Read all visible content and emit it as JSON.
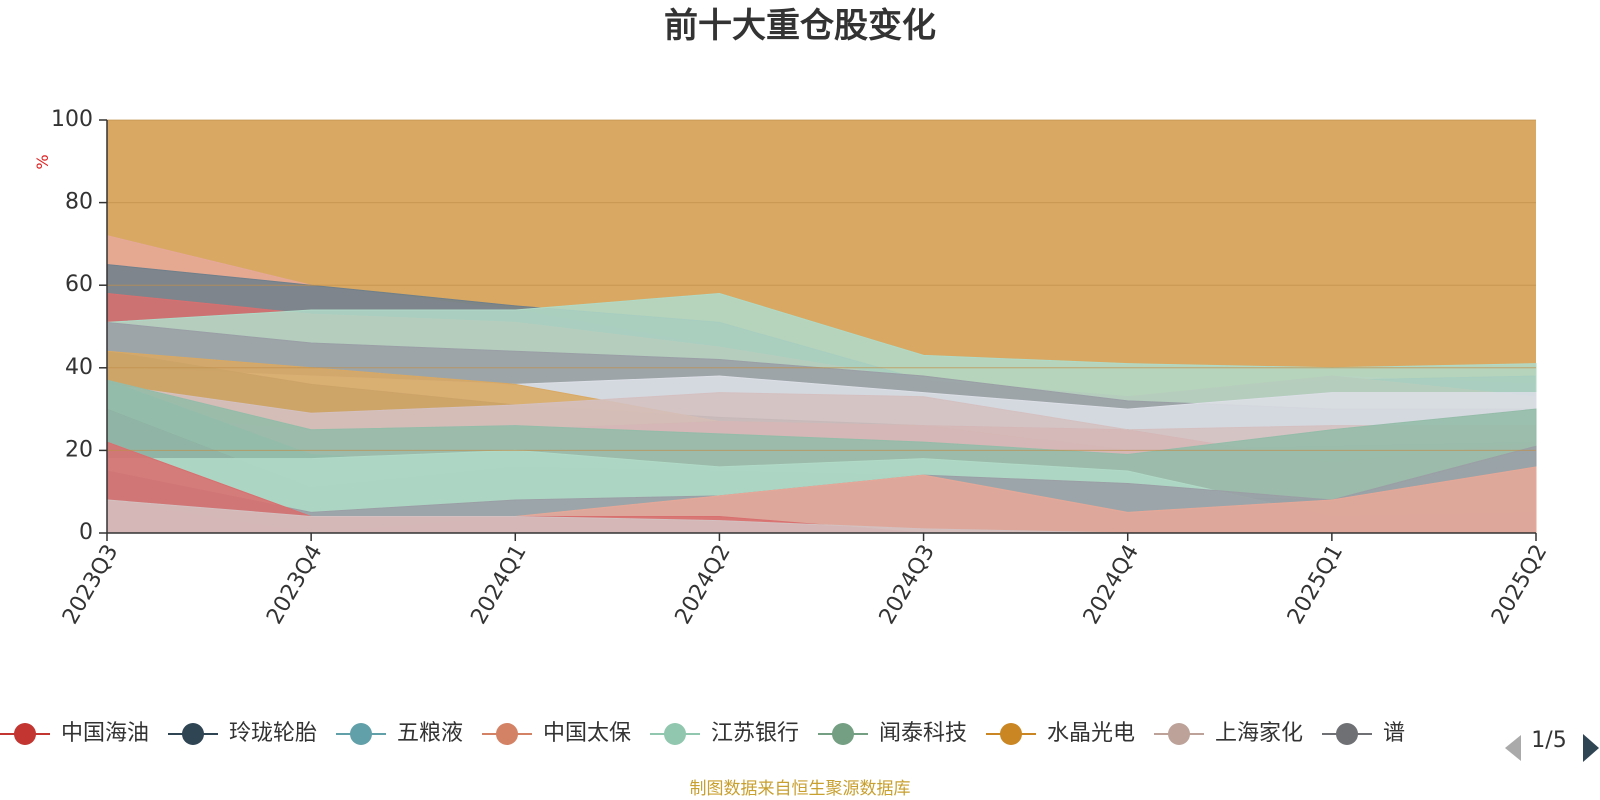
{
  "chart_data": {
    "type": "area",
    "title": "前十大重仓股变化",
    "ylabel": "%",
    "ylim": [
      0,
      100
    ],
    "yticks": [
      0,
      20,
      40,
      60,
      80,
      100
    ],
    "categories": [
      "2023Q3",
      "2023Q4",
      "2024Q1",
      "2024Q2",
      "2024Q3",
      "2024Q4",
      "2025Q1",
      "2025Q2"
    ],
    "background_area_color": "#d9a963",
    "areas": [
      {
        "color": "#e6a898",
        "values": [
          72,
          60,
          54,
          45,
          37,
          33,
          38,
          36
        ]
      },
      {
        "color": "#6f7f8b",
        "values": [
          65,
          60,
          55,
          51,
          37,
          33,
          37,
          38
        ]
      },
      {
        "color": "#d87070",
        "values": [
          58,
          53,
          51,
          45,
          37,
          33,
          38,
          33
        ]
      },
      {
        "color": "#b0dac7",
        "values": [
          51,
          54,
          54,
          58,
          43,
          41,
          40,
          41
        ]
      },
      {
        "color": "#9a9fa6",
        "values": [
          51,
          46,
          44,
          42,
          38,
          32,
          30,
          30
        ]
      },
      {
        "color": "#dcdfe6",
        "values": [
          40,
          38,
          36,
          38,
          34,
          30,
          34,
          34
        ]
      },
      {
        "color": "#6f7f8b",
        "values": [
          44,
          36,
          31,
          28,
          26,
          20,
          21,
          22
        ]
      },
      {
        "color": "#d9a963",
        "values": [
          44,
          40,
          36,
          27,
          26,
          20,
          12,
          13
        ]
      },
      {
        "color": "#d87070",
        "values": [
          29,
          25,
          25,
          27,
          26,
          25,
          17,
          22
        ]
      },
      {
        "color": "#d4c0c0",
        "values": [
          36,
          29,
          31,
          34,
          33,
          25,
          26,
          26
        ]
      },
      {
        "color": "#8ab8be",
        "values": [
          37,
          19,
          16,
          11,
          9,
          5,
          3,
          2
        ]
      },
      {
        "color": "#6f7f8b",
        "values": [
          30,
          11,
          16,
          15,
          14,
          9,
          8,
          12
        ]
      },
      {
        "color": "#94bca9",
        "values": [
          37,
          25,
          26,
          24,
          22,
          19,
          25,
          30
        ]
      },
      {
        "color": "#b0dac7",
        "values": [
          18,
          18,
          20,
          16,
          18,
          15,
          4,
          5
        ]
      },
      {
        "color": "#9a9fa6",
        "values": [
          15,
          5,
          8,
          9,
          14,
          12,
          8,
          21
        ]
      },
      {
        "color": "#e6a898",
        "values": [
          8,
          0,
          4,
          9,
          14,
          5,
          8,
          16
        ]
      },
      {
        "color": "#d87070",
        "values": [
          22,
          4,
          4,
          4,
          0,
          0,
          0,
          0
        ]
      },
      {
        "color": "#d4c0c0",
        "values": [
          8,
          4,
          4,
          3,
          1,
          0,
          0,
          0
        ]
      }
    ],
    "legend": [
      {
        "name": "中国海油",
        "color": "#c23531"
      },
      {
        "name": "玲珑轮胎",
        "color": "#2f4554"
      },
      {
        "name": "五粮液",
        "color": "#61a0a8"
      },
      {
        "name": "中国太保",
        "color": "#d48265"
      },
      {
        "name": "江苏银行",
        "color": "#91c7ae"
      },
      {
        "name": "闻泰科技",
        "color": "#749f83"
      },
      {
        "name": "水晶光电",
        "color": "#ca8622"
      },
      {
        "name": "上海家化",
        "color": "#bda29a"
      },
      {
        "name": "谱",
        "color": "#6e7074"
      }
    ],
    "legend_page": "1/5"
  },
  "source_note": "制图数据来自恒生聚源数据库",
  "colors": {
    "axis": "#333333",
    "grid": "#c0904a",
    "pager_prev": "#aaaaaa",
    "pager_next": "#2f4554"
  }
}
